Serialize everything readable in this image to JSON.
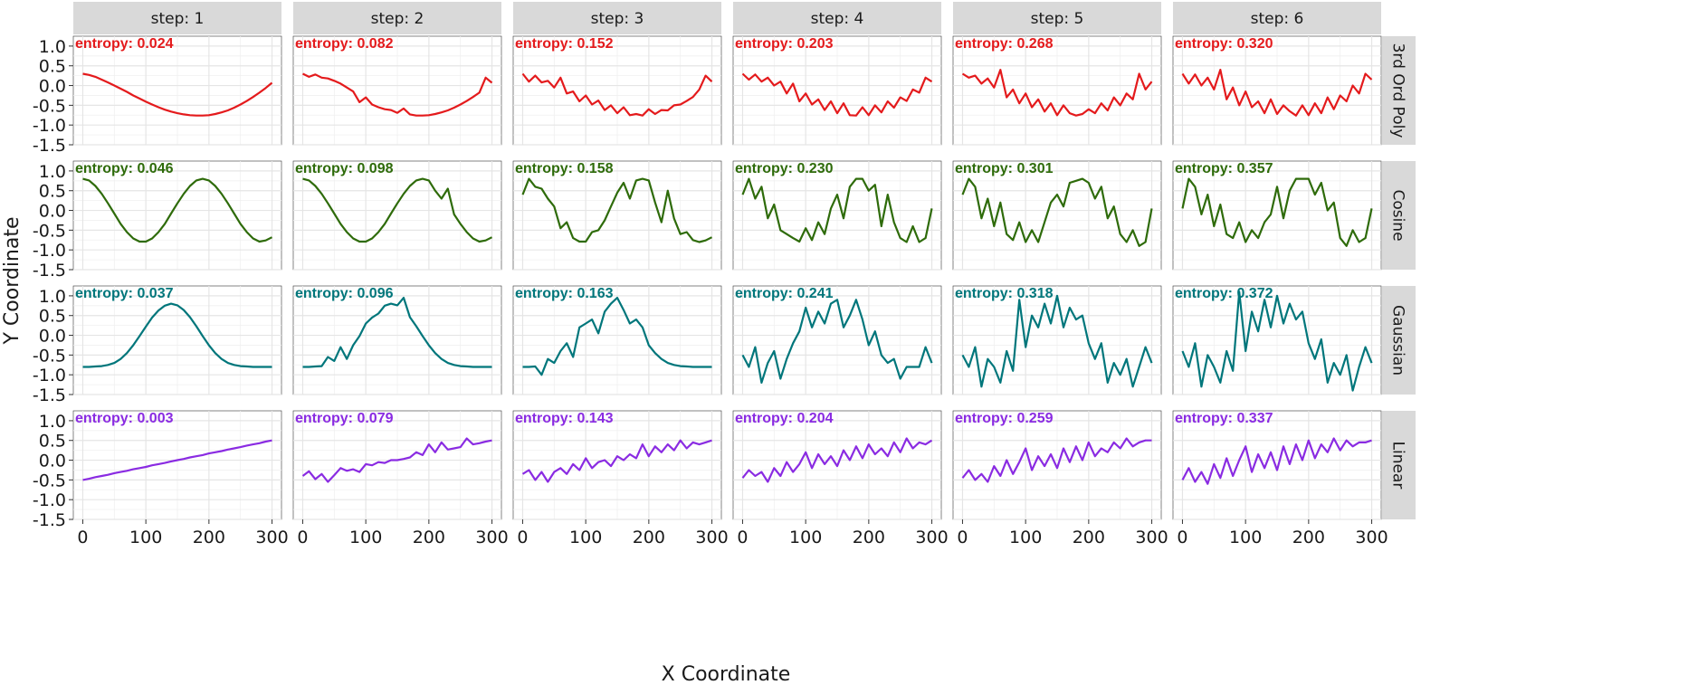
{
  "chart_data": {
    "type": "line",
    "xlabel": "X Coordinate",
    "ylabel": "Y Coordinate",
    "xlim": [
      -15,
      315
    ],
    "ylim": [
      -1.5,
      1.25
    ],
    "x_ticks": [
      0,
      100,
      200,
      300
    ],
    "y_ticks": [
      1.0,
      0.5,
      0.0,
      -0.5,
      -1.0,
      -1.5
    ],
    "x_tick_labels": [
      "0",
      "100",
      "200",
      "300"
    ],
    "y_tick_labels": [
      "1.0",
      "0.5",
      "0.0",
      "-0.5",
      "-1.0",
      "-1.5"
    ],
    "grid": true,
    "panel_background": "#ffffff",
    "grid_color": "#e5e5e5",
    "strip_fill": "#d9d9d9",
    "columns": [
      "step: 1",
      "step: 2",
      "step: 3",
      "step: 4",
      "step: 5",
      "step: 6"
    ],
    "rows": [
      {
        "label": "3rd Ord Poly",
        "color": "#e41a1c",
        "annotations": [
          "entropy: 0.024",
          "entropy: 0.082",
          "entropy: 0.152",
          "entropy: 0.203",
          "entropy: 0.268",
          "entropy: 0.320"
        ]
      },
      {
        "label": "Cosine",
        "color": "#2e6b0a",
        "annotations": [
          "entropy: 0.046",
          "entropy: 0.098",
          "entropy: 0.158",
          "entropy: 0.230",
          "entropy: 0.301",
          "entropy: 0.357"
        ]
      },
      {
        "label": "Gaussian",
        "color": "#00767b",
        "annotations": [
          "entropy: 0.037",
          "entropy: 0.096",
          "entropy: 0.163",
          "entropy: 0.241",
          "entropy: 0.318",
          "entropy: 0.372"
        ]
      },
      {
        "label": "Linear",
        "color": "#8a2be2",
        "annotations": [
          "entropy: 0.003",
          "entropy: 0.079",
          "entropy: 0.143",
          "entropy: 0.204",
          "entropy: 0.259",
          "entropy: 0.337"
        ]
      }
    ],
    "x_values": [
      0,
      10,
      20,
      30,
      40,
      50,
      60,
      70,
      80,
      90,
      100,
      110,
      120,
      130,
      140,
      150,
      160,
      170,
      180,
      190,
      200,
      210,
      220,
      230,
      240,
      250,
      260,
      270,
      280,
      290,
      300
    ],
    "series": [
      [
        [
          0.3,
          0.27,
          0.22,
          0.15,
          0.08,
          0.0,
          -0.08,
          -0.16,
          -0.25,
          -0.33,
          -0.41,
          -0.48,
          -0.55,
          -0.61,
          -0.66,
          -0.7,
          -0.73,
          -0.75,
          -0.76,
          -0.76,
          -0.75,
          -0.72,
          -0.68,
          -0.63,
          -0.56,
          -0.48,
          -0.39,
          -0.29,
          -0.18,
          -0.06,
          0.07
        ],
        [
          0.3,
          0.22,
          0.28,
          0.2,
          0.18,
          0.12,
          0.05,
          -0.05,
          -0.15,
          -0.42,
          -0.3,
          -0.48,
          -0.55,
          -0.6,
          -0.62,
          -0.69,
          -0.58,
          -0.73,
          -0.76,
          -0.76,
          -0.75,
          -0.72,
          -0.68,
          -0.63,
          -0.56,
          -0.48,
          -0.39,
          -0.29,
          -0.18,
          0.2,
          0.07
        ],
        [
          0.3,
          0.1,
          0.25,
          0.08,
          0.12,
          -0.05,
          0.2,
          -0.2,
          -0.15,
          -0.4,
          -0.25,
          -0.48,
          -0.38,
          -0.62,
          -0.5,
          -0.7,
          -0.55,
          -0.75,
          -0.72,
          -0.76,
          -0.6,
          -0.72,
          -0.62,
          -0.63,
          -0.5,
          -0.48,
          -0.39,
          -0.29,
          -0.1,
          0.25,
          0.1
        ],
        [
          0.3,
          0.15,
          0.28,
          0.1,
          0.2,
          0.0,
          0.1,
          -0.2,
          0.05,
          -0.4,
          -0.2,
          -0.48,
          -0.35,
          -0.62,
          -0.4,
          -0.7,
          -0.45,
          -0.75,
          -0.76,
          -0.55,
          -0.75,
          -0.5,
          -0.68,
          -0.4,
          -0.56,
          -0.3,
          -0.39,
          -0.1,
          -0.18,
          0.2,
          0.1
        ],
        [
          0.3,
          0.2,
          0.25,
          0.05,
          0.18,
          -0.05,
          0.4,
          -0.3,
          -0.1,
          -0.45,
          -0.2,
          -0.55,
          -0.35,
          -0.66,
          -0.45,
          -0.75,
          -0.5,
          -0.7,
          -0.76,
          -0.72,
          -0.6,
          -0.7,
          -0.45,
          -0.63,
          -0.3,
          -0.5,
          -0.2,
          -0.35,
          0.3,
          -0.1,
          0.1
        ],
        [
          0.3,
          0.05,
          0.28,
          0.0,
          0.2,
          -0.1,
          0.4,
          -0.35,
          -0.05,
          -0.5,
          -0.15,
          -0.55,
          -0.4,
          -0.7,
          -0.35,
          -0.72,
          -0.5,
          -0.65,
          -0.76,
          -0.5,
          -0.75,
          -0.45,
          -0.7,
          -0.3,
          -0.6,
          -0.25,
          -0.4,
          0.0,
          -0.2,
          0.3,
          0.15
        ]
      ],
      [
        [
          0.8,
          0.76,
          0.62,
          0.42,
          0.18,
          -0.08,
          -0.34,
          -0.55,
          -0.71,
          -0.79,
          -0.79,
          -0.71,
          -0.55,
          -0.34,
          -0.08,
          0.18,
          0.42,
          0.62,
          0.76,
          0.8,
          0.76,
          0.62,
          0.42,
          0.18,
          -0.08,
          -0.34,
          -0.55,
          -0.71,
          -0.79,
          -0.76,
          -0.68
        ],
        [
          0.8,
          0.76,
          0.62,
          0.42,
          0.18,
          -0.08,
          -0.34,
          -0.55,
          -0.71,
          -0.79,
          -0.79,
          -0.71,
          -0.55,
          -0.34,
          -0.08,
          0.18,
          0.42,
          0.62,
          0.76,
          0.8,
          0.76,
          0.5,
          0.3,
          0.55,
          -0.1,
          -0.34,
          -0.55,
          -0.71,
          -0.79,
          -0.76,
          -0.68
        ],
        [
          0.4,
          0.8,
          0.6,
          0.55,
          0.3,
          0.1,
          -0.45,
          -0.3,
          -0.7,
          -0.79,
          -0.79,
          -0.55,
          -0.5,
          -0.25,
          0.1,
          0.45,
          0.7,
          0.3,
          0.76,
          0.8,
          0.76,
          0.2,
          -0.3,
          0.5,
          -0.2,
          -0.6,
          -0.55,
          -0.75,
          -0.8,
          -0.76,
          -0.68
        ],
        [
          0.4,
          0.8,
          0.3,
          0.6,
          -0.2,
          0.15,
          -0.5,
          -0.6,
          -0.7,
          -0.79,
          -0.45,
          -0.75,
          -0.3,
          -0.6,
          0.05,
          0.4,
          -0.2,
          0.6,
          0.8,
          0.8,
          0.5,
          0.65,
          -0.4,
          0.4,
          -0.3,
          -0.7,
          -0.8,
          -0.4,
          -0.8,
          -0.7,
          0.05
        ],
        [
          0.4,
          0.8,
          0.6,
          -0.2,
          0.3,
          -0.4,
          0.2,
          -0.6,
          -0.75,
          -0.3,
          -0.8,
          -0.5,
          -0.8,
          -0.3,
          0.2,
          0.4,
          0.1,
          0.7,
          0.75,
          0.8,
          0.7,
          0.3,
          0.6,
          -0.2,
          0.1,
          -0.6,
          -0.8,
          -0.5,
          -0.9,
          -0.8,
          0.05
        ],
        [
          0.05,
          0.8,
          0.6,
          -0.1,
          0.4,
          -0.4,
          0.15,
          -0.6,
          -0.7,
          -0.3,
          -0.8,
          -0.5,
          -0.7,
          -0.3,
          -0.1,
          0.6,
          -0.2,
          0.5,
          0.8,
          0.8,
          0.8,
          0.4,
          0.7,
          0.0,
          0.2,
          -0.7,
          -0.9,
          -0.5,
          -0.8,
          -0.7,
          0.05
        ]
      ],
      [
        [
          -0.8,
          -0.8,
          -0.79,
          -0.78,
          -0.75,
          -0.7,
          -0.6,
          -0.45,
          -0.25,
          -0.02,
          0.22,
          0.45,
          0.63,
          0.75,
          0.8,
          0.76,
          0.64,
          0.46,
          0.23,
          -0.02,
          -0.25,
          -0.45,
          -0.6,
          -0.7,
          -0.75,
          -0.78,
          -0.79,
          -0.8,
          -0.8,
          -0.8,
          -0.8
        ],
        [
          -0.8,
          -0.8,
          -0.79,
          -0.78,
          -0.55,
          -0.65,
          -0.3,
          -0.6,
          -0.25,
          -0.02,
          0.3,
          0.45,
          0.55,
          0.75,
          0.8,
          0.76,
          0.95,
          0.46,
          0.23,
          -0.02,
          -0.25,
          -0.45,
          -0.6,
          -0.7,
          -0.75,
          -0.78,
          -0.79,
          -0.8,
          -0.8,
          -0.8,
          -0.8
        ],
        [
          -0.8,
          -0.8,
          -0.79,
          -1.0,
          -0.6,
          -0.7,
          -0.4,
          -0.2,
          -0.55,
          0.2,
          0.3,
          0.4,
          0.05,
          0.6,
          0.8,
          0.95,
          0.64,
          0.3,
          0.4,
          0.2,
          -0.25,
          -0.45,
          -0.6,
          -0.7,
          -0.75,
          -0.78,
          -0.79,
          -0.8,
          -0.8,
          -0.8,
          -0.8
        ],
        [
          -0.5,
          -0.8,
          -0.3,
          -1.2,
          -0.7,
          -0.4,
          -1.1,
          -0.6,
          -0.2,
          0.1,
          0.7,
          0.2,
          0.6,
          0.3,
          0.8,
          0.9,
          0.2,
          0.5,
          0.9,
          0.4,
          -0.25,
          0.1,
          -0.5,
          -0.7,
          -0.6,
          -1.1,
          -0.8,
          -0.8,
          -0.8,
          -0.3,
          -0.7
        ],
        [
          -0.5,
          -0.8,
          -0.3,
          -1.3,
          -0.6,
          -0.8,
          -1.2,
          -0.4,
          -0.9,
          0.9,
          -0.3,
          0.5,
          0.2,
          0.8,
          0.3,
          1.0,
          0.2,
          0.7,
          0.4,
          0.5,
          -0.2,
          -0.6,
          -0.2,
          -1.2,
          -0.7,
          -1.0,
          -0.6,
          -1.3,
          -0.8,
          -0.3,
          -0.7
        ],
        [
          -0.4,
          -0.8,
          -0.2,
          -1.3,
          -0.5,
          -0.8,
          -1.2,
          -0.4,
          -0.9,
          1.1,
          -0.4,
          0.6,
          0.1,
          0.9,
          0.2,
          1.0,
          0.3,
          0.8,
          0.4,
          0.6,
          -0.2,
          -0.6,
          -0.1,
          -1.2,
          -0.7,
          -1.0,
          -0.5,
          -1.4,
          -0.8,
          -0.3,
          -0.7
        ]
      ],
      [
        [
          -0.5,
          -0.47,
          -0.43,
          -0.4,
          -0.37,
          -0.33,
          -0.3,
          -0.27,
          -0.23,
          -0.2,
          -0.17,
          -0.13,
          -0.1,
          -0.07,
          -0.03,
          0.0,
          0.03,
          0.07,
          0.1,
          0.13,
          0.17,
          0.2,
          0.23,
          0.27,
          0.3,
          0.33,
          0.37,
          0.4,
          0.43,
          0.47,
          0.5
        ],
        [
          -0.4,
          -0.28,
          -0.48,
          -0.35,
          -0.55,
          -0.38,
          -0.2,
          -0.27,
          -0.23,
          -0.3,
          -0.1,
          -0.13,
          -0.05,
          -0.07,
          0.0,
          0.0,
          0.03,
          0.07,
          0.2,
          0.13,
          0.4,
          0.2,
          0.45,
          0.27,
          0.3,
          0.33,
          0.55,
          0.4,
          0.43,
          0.47,
          0.5
        ],
        [
          -0.35,
          -0.25,
          -0.5,
          -0.3,
          -0.55,
          -0.3,
          -0.2,
          -0.35,
          -0.1,
          -0.25,
          0.05,
          -0.2,
          -0.05,
          0.0,
          -0.15,
          0.1,
          0.0,
          0.15,
          0.05,
          0.4,
          0.1,
          0.35,
          0.2,
          0.4,
          0.25,
          0.5,
          0.3,
          0.45,
          0.4,
          0.45,
          0.5
        ],
        [
          -0.45,
          -0.25,
          -0.4,
          -0.3,
          -0.55,
          -0.2,
          -0.4,
          -0.05,
          -0.3,
          -0.1,
          0.2,
          -0.2,
          0.15,
          -0.1,
          0.1,
          -0.15,
          0.25,
          0.0,
          0.35,
          0.05,
          0.4,
          0.15,
          0.3,
          0.1,
          0.45,
          0.2,
          0.55,
          0.3,
          0.45,
          0.4,
          0.5
        ],
        [
          -0.45,
          -0.25,
          -0.5,
          -0.35,
          -0.55,
          -0.15,
          -0.4,
          0.0,
          -0.35,
          -0.05,
          0.3,
          -0.25,
          0.1,
          -0.15,
          0.15,
          -0.2,
          0.3,
          -0.05,
          0.35,
          0.0,
          0.45,
          0.1,
          0.3,
          0.2,
          0.45,
          0.3,
          0.55,
          0.35,
          0.45,
          0.5,
          0.5
        ],
        [
          -0.5,
          -0.2,
          -0.55,
          -0.3,
          -0.6,
          -0.1,
          -0.45,
          0.05,
          -0.4,
          0.0,
          0.35,
          -0.3,
          0.15,
          -0.2,
          0.2,
          -0.25,
          0.35,
          -0.1,
          0.4,
          0.0,
          0.5,
          0.05,
          0.4,
          0.2,
          0.55,
          0.25,
          0.5,
          0.35,
          0.45,
          0.45,
          0.5
        ]
      ]
    ]
  }
}
